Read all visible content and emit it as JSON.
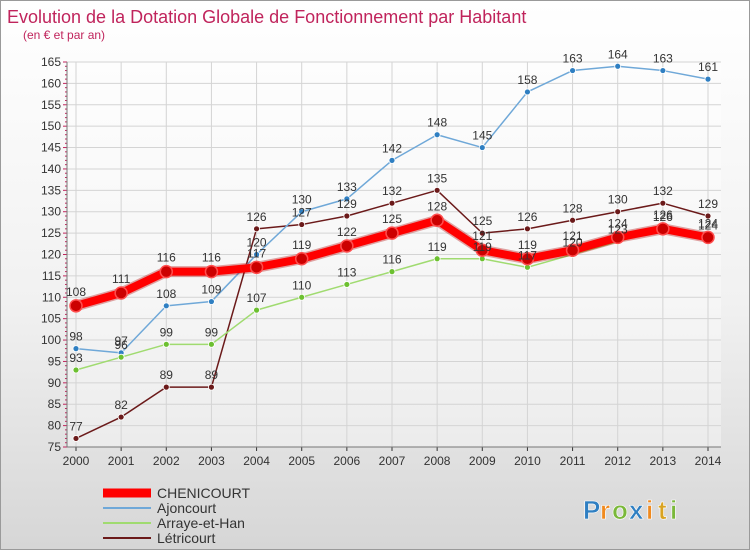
{
  "chart_data": {
    "type": "line",
    "title": "Evolution de la Dotation Globale de Fonctionnement par Habitant",
    "subtitle": "(en € et par an)",
    "x": [
      "2000",
      "2001",
      "2002",
      "2003",
      "2004",
      "2005",
      "2006",
      "2007",
      "2008",
      "2009",
      "2010",
      "2011",
      "2012",
      "2013",
      "2014"
    ],
    "ylim": [
      75,
      165
    ],
    "yticks": [
      75,
      80,
      85,
      90,
      95,
      100,
      105,
      110,
      115,
      120,
      125,
      130,
      135,
      140,
      145,
      150,
      155,
      160,
      165
    ],
    "grid": true,
    "legend_position": "bottom-left",
    "series": [
      {
        "name": "Létricourt",
        "color": "#6b1a1a",
        "point": "#6b1a1a",
        "style": "thin",
        "values": [
          77,
          82,
          89,
          89,
          126,
          127,
          129,
          132,
          135,
          125,
          126,
          128,
          130,
          132,
          129
        ]
      },
      {
        "name": "Ajoncourt",
        "color": "#6fa8d8",
        "point": "#2f7fc2",
        "style": "thin",
        "values": [
          98,
          97,
          108,
          109,
          120,
          130,
          133,
          142,
          148,
          145,
          158,
          163,
          164,
          163,
          161
        ]
      },
      {
        "name": "Arraye-et-Han",
        "color": "#a0db70",
        "point": "#6cc030",
        "style": "thin",
        "values": [
          93,
          96,
          99,
          99,
          107,
          110,
          113,
          116,
          119,
          119,
          117,
          120,
          123,
          126,
          124
        ]
      },
      {
        "name": "CHENICOURT",
        "color": "#ff0000",
        "point": "#cc0000",
        "style": "thick",
        "values": [
          108,
          111,
          116,
          116,
          117,
          119,
          122,
          125,
          128,
          121,
          119,
          121,
          124,
          126,
          124
        ]
      }
    ],
    "legend_order": [
      "CHENICOURT",
      "Ajoncourt",
      "Arraye-et-Han",
      "Létricourt"
    ]
  },
  "branding": {
    "letters": [
      "P",
      "r",
      "o",
      "x",
      "i",
      "t",
      "i"
    ],
    "colors": [
      "#2f7fc2",
      "#f08a1e",
      "#7ab83a",
      "#2f7fc2",
      "#f08a1e",
      "#d9a321",
      "#7ab83a"
    ]
  },
  "colors": {
    "title": "#c0245c",
    "axis": "#333333",
    "grid": "#d4d4d4"
  }
}
